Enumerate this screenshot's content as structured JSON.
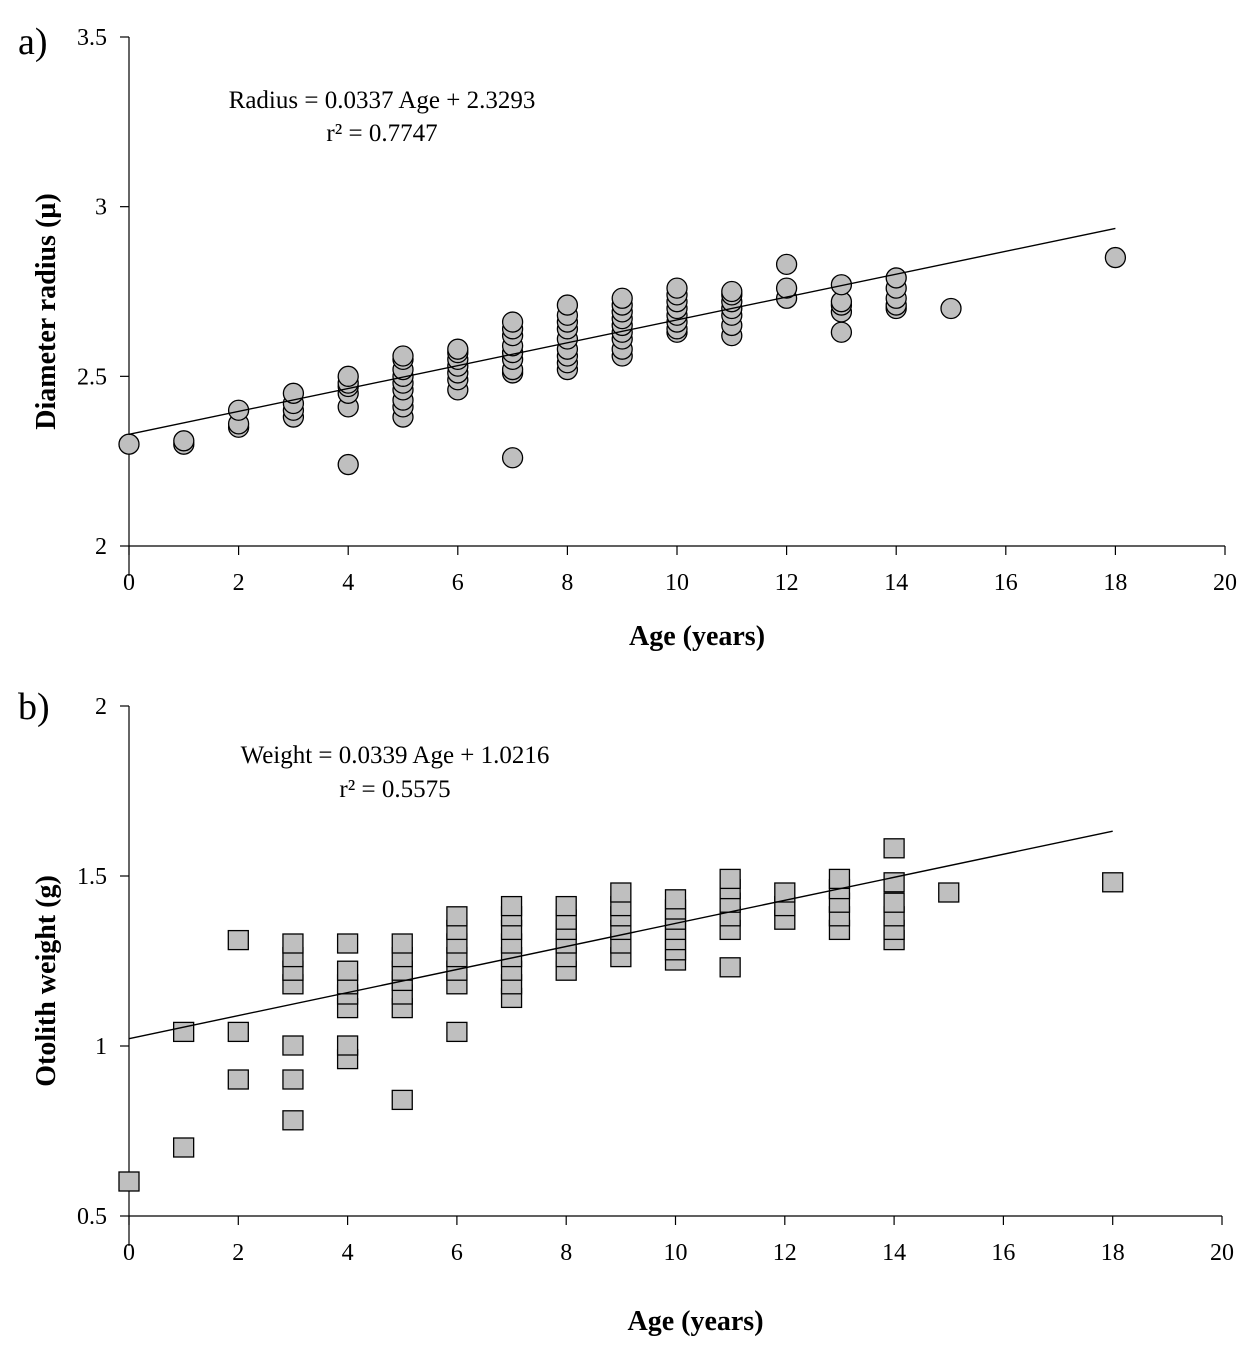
{
  "chart_data": [
    {
      "type": "scatter",
      "panel_label": "a)",
      "xlabel": "Age (years)",
      "ylabel": "Diameter radius  (µ)",
      "xlim": [
        0,
        20
      ],
      "ylim": [
        2,
        3.5
      ],
      "xticks": [
        "0",
        "2",
        "4",
        "6",
        "8",
        "10",
        "12",
        "14",
        "16",
        "18",
        "20"
      ],
      "yticks": [
        "2",
        "2.5",
        "3",
        "3.5"
      ],
      "marker": "circle",
      "equation": "Radius = 0.0337 Age + 2.3293",
      "r2": "r² = 0.7747",
      "trendline": {
        "slope": 0.0337,
        "intercept": 2.3293,
        "x_range": [
          0,
          18
        ]
      },
      "points": [
        [
          0,
          2.3
        ],
        [
          1,
          2.3
        ],
        [
          1,
          2.31
        ],
        [
          2,
          2.35
        ],
        [
          2,
          2.36
        ],
        [
          2,
          2.4
        ],
        [
          3,
          2.38
        ],
        [
          3,
          2.4
        ],
        [
          3,
          2.42
        ],
        [
          3,
          2.45
        ],
        [
          4,
          2.24
        ],
        [
          4,
          2.41
        ],
        [
          4,
          2.45
        ],
        [
          4,
          2.47
        ],
        [
          4,
          2.48
        ],
        [
          4,
          2.5
        ],
        [
          5,
          2.38
        ],
        [
          5,
          2.41
        ],
        [
          5,
          2.43
        ],
        [
          5,
          2.46
        ],
        [
          5,
          2.48
        ],
        [
          5,
          2.5
        ],
        [
          5,
          2.52
        ],
        [
          5,
          2.55
        ],
        [
          5,
          2.56
        ],
        [
          6,
          2.46
        ],
        [
          6,
          2.49
        ],
        [
          6,
          2.51
        ],
        [
          6,
          2.53
        ],
        [
          6,
          2.55
        ],
        [
          6,
          2.57
        ],
        [
          6,
          2.58
        ],
        [
          7,
          2.26
        ],
        [
          7,
          2.51
        ],
        [
          7,
          2.52
        ],
        [
          7,
          2.55
        ],
        [
          7,
          2.57
        ],
        [
          7,
          2.59
        ],
        [
          7,
          2.62
        ],
        [
          7,
          2.64
        ],
        [
          7,
          2.66
        ],
        [
          8,
          2.52
        ],
        [
          8,
          2.54
        ],
        [
          8,
          2.56
        ],
        [
          8,
          2.58
        ],
        [
          8,
          2.61
        ],
        [
          8,
          2.64
        ],
        [
          8,
          2.66
        ],
        [
          8,
          2.68
        ],
        [
          8,
          2.71
        ],
        [
          9,
          2.56
        ],
        [
          9,
          2.58
        ],
        [
          9,
          2.61
        ],
        [
          9,
          2.63
        ],
        [
          9,
          2.65
        ],
        [
          9,
          2.67
        ],
        [
          9,
          2.69
        ],
        [
          9,
          2.71
        ],
        [
          9,
          2.73
        ],
        [
          10,
          2.63
        ],
        [
          10,
          2.64
        ],
        [
          10,
          2.66
        ],
        [
          10,
          2.68
        ],
        [
          10,
          2.7
        ],
        [
          10,
          2.72
        ],
        [
          10,
          2.74
        ],
        [
          10,
          2.76
        ],
        [
          11,
          2.62
        ],
        [
          11,
          2.65
        ],
        [
          11,
          2.68
        ],
        [
          11,
          2.7
        ],
        [
          11,
          2.72
        ],
        [
          11,
          2.74
        ],
        [
          11,
          2.75
        ],
        [
          12,
          2.73
        ],
        [
          12,
          2.76
        ],
        [
          12,
          2.83
        ],
        [
          13,
          2.63
        ],
        [
          13,
          2.69
        ],
        [
          13,
          2.71
        ],
        [
          13,
          2.72
        ],
        [
          13,
          2.77
        ],
        [
          14,
          2.7
        ],
        [
          14,
          2.71
        ],
        [
          14,
          2.73
        ],
        [
          14,
          2.76
        ],
        [
          14,
          2.79
        ],
        [
          15,
          2.7
        ],
        [
          18,
          2.85
        ]
      ]
    },
    {
      "type": "scatter",
      "panel_label": "b)",
      "xlabel": "Age (years)",
      "ylabel": "Otolith weight  (g)",
      "xlim": [
        0,
        20
      ],
      "ylim": [
        0.5,
        2
      ],
      "xticks": [
        "0",
        "2",
        "4",
        "6",
        "8",
        "10",
        "12",
        "14",
        "16",
        "18",
        "20"
      ],
      "yticks": [
        "0.5",
        "1",
        "1.5",
        "2"
      ],
      "marker": "square",
      "equation": "Weight = 0.0339 Age + 1.0216",
      "r2": "r² = 0.5575",
      "trendline": {
        "slope": 0.0339,
        "intercept": 1.0216,
        "x_range": [
          0,
          18
        ]
      },
      "points": [
        [
          0,
          0.6
        ],
        [
          1,
          0.7
        ],
        [
          1,
          1.04
        ],
        [
          2,
          0.9
        ],
        [
          2,
          1.04
        ],
        [
          2,
          1.31
        ],
        [
          3,
          0.78
        ],
        [
          3,
          0.9
        ],
        [
          3,
          1.0
        ],
        [
          3,
          1.18
        ],
        [
          3,
          1.22
        ],
        [
          3,
          1.26
        ],
        [
          3,
          1.3
        ],
        [
          4,
          0.96
        ],
        [
          4,
          1.0
        ],
        [
          4,
          1.11
        ],
        [
          4,
          1.15
        ],
        [
          4,
          1.18
        ],
        [
          4,
          1.22
        ],
        [
          4,
          1.3
        ],
        [
          5,
          0.84
        ],
        [
          5,
          1.11
        ],
        [
          5,
          1.15
        ],
        [
          5,
          1.19
        ],
        [
          5,
          1.22
        ],
        [
          5,
          1.26
        ],
        [
          5,
          1.3
        ],
        [
          6,
          1.04
        ],
        [
          6,
          1.18
        ],
        [
          6,
          1.22
        ],
        [
          6,
          1.26
        ],
        [
          6,
          1.3
        ],
        [
          6,
          1.34
        ],
        [
          6,
          1.38
        ],
        [
          7,
          1.14
        ],
        [
          7,
          1.18
        ],
        [
          7,
          1.22
        ],
        [
          7,
          1.26
        ],
        [
          7,
          1.3
        ],
        [
          7,
          1.34
        ],
        [
          7,
          1.38
        ],
        [
          7,
          1.41
        ],
        [
          8,
          1.22
        ],
        [
          8,
          1.26
        ],
        [
          8,
          1.3
        ],
        [
          8,
          1.34
        ],
        [
          8,
          1.37
        ],
        [
          8,
          1.41
        ],
        [
          9,
          1.26
        ],
        [
          9,
          1.3
        ],
        [
          9,
          1.34
        ],
        [
          9,
          1.38
        ],
        [
          9,
          1.41
        ],
        [
          9,
          1.45
        ],
        [
          10,
          1.25
        ],
        [
          10,
          1.28
        ],
        [
          10,
          1.31
        ],
        [
          10,
          1.34
        ],
        [
          10,
          1.37
        ],
        [
          10,
          1.4
        ],
        [
          10,
          1.43
        ],
        [
          11,
          1.23
        ],
        [
          11,
          1.34
        ],
        [
          11,
          1.38
        ],
        [
          11,
          1.42
        ],
        [
          11,
          1.46
        ],
        [
          11,
          1.49
        ],
        [
          12,
          1.37
        ],
        [
          12,
          1.41
        ],
        [
          12,
          1.45
        ],
        [
          13,
          1.34
        ],
        [
          13,
          1.38
        ],
        [
          13,
          1.42
        ],
        [
          13,
          1.46
        ],
        [
          13,
          1.49
        ],
        [
          14,
          1.31
        ],
        [
          14,
          1.34
        ],
        [
          14,
          1.38
        ],
        [
          14,
          1.42
        ],
        [
          14,
          1.48
        ],
        [
          14,
          1.58
        ],
        [
          15,
          1.45
        ],
        [
          18,
          1.48
        ]
      ]
    }
  ]
}
